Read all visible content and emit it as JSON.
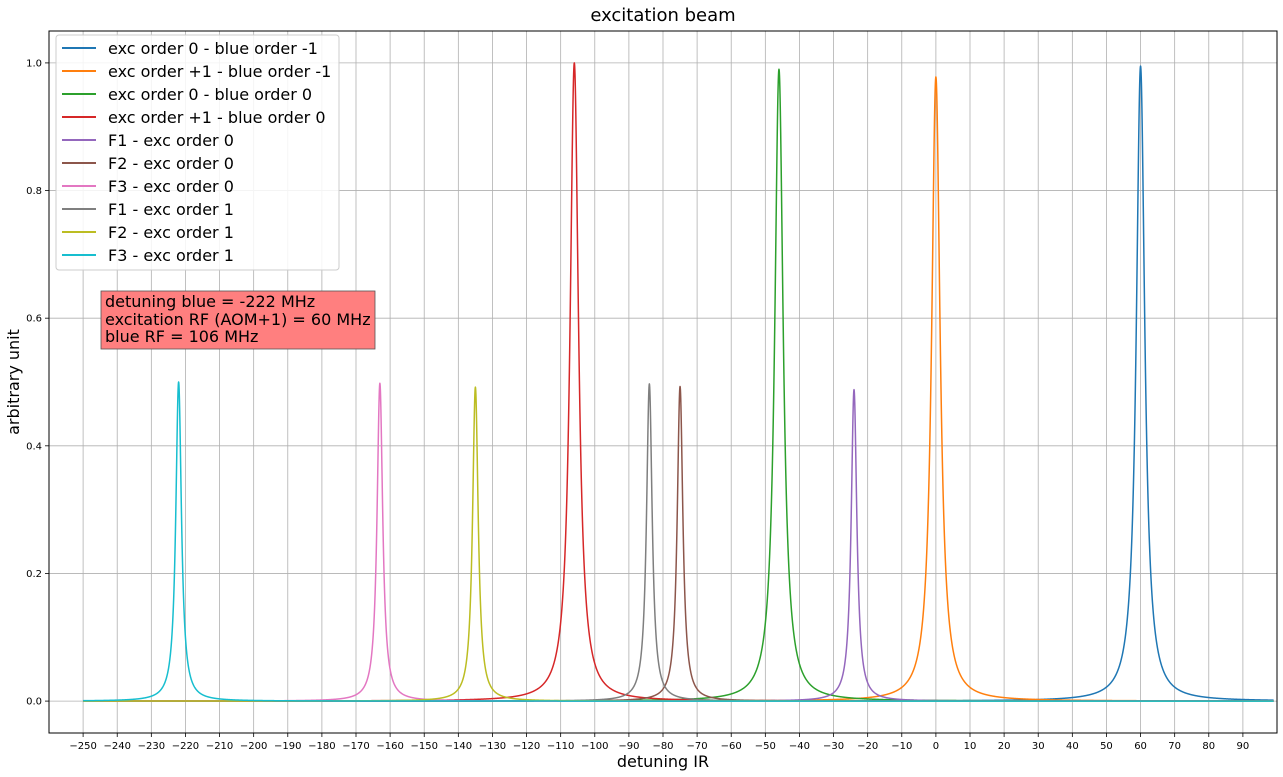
{
  "chart_data": {
    "type": "line",
    "title": "excitation beam",
    "xlabel": "detuning IR",
    "ylabel": "arbitrary unit",
    "xlim": [
      -260,
      100
    ],
    "ylim": [
      -0.05,
      1.05
    ],
    "x_range": [
      -250,
      99
    ],
    "xticks": [
      -250,
      -240,
      -230,
      -220,
      -210,
      -200,
      -190,
      -180,
      -170,
      -160,
      -150,
      -140,
      -130,
      -120,
      -110,
      -100,
      -90,
      -80,
      -70,
      -60,
      -50,
      -40,
      -30,
      -20,
      -10,
      0,
      10,
      20,
      30,
      40,
      50,
      60,
      70,
      80,
      90
    ],
    "xtick_labels": [
      "−250",
      "−240",
      "−230",
      "−220",
      "−210",
      "−200",
      "−190",
      "−180",
      "−170",
      "−160",
      "−150",
      "−140",
      "−130",
      "−120",
      "−110",
      "−100",
      "−90",
      "−80",
      "−70",
      "−60",
      "−50",
      "−40",
      "−30",
      "−20",
      "−10",
      "0",
      "10",
      "20",
      "30",
      "40",
      "50",
      "60",
      "70",
      "80",
      "90"
    ],
    "yticks": [
      0.0,
      0.2,
      0.4,
      0.6,
      0.8,
      1.0
    ],
    "ytick_labels": [
      "0.0",
      "0.2",
      "0.4",
      "0.6",
      "0.8",
      "1.0"
    ],
    "grid": true,
    "legend_position": "top-left",
    "series": [
      {
        "name": "exc order 0 - blue order -1",
        "color": "#1f77b4",
        "center": 60,
        "peak": 0.995,
        "width": 1.5
      },
      {
        "name": "exc order +1 - blue order -1",
        "color": "#ff7f0e",
        "center": 0,
        "peak": 0.978,
        "width": 1.5
      },
      {
        "name": "exc order 0 - blue order 0",
        "color": "#2ca02c",
        "center": -46,
        "peak": 0.99,
        "width": 1.5
      },
      {
        "name": "exc order +1 - blue order 0",
        "color": "#d62728",
        "center": -106,
        "peak": 1.0,
        "width": 1.5
      },
      {
        "name": "F1 - exc order 0",
        "color": "#9467bd",
        "center": -24,
        "peak": 0.488,
        "width": 1.0
      },
      {
        "name": "F2 - exc order 0",
        "color": "#8c564b",
        "center": -75,
        "peak": 0.493,
        "width": 1.0
      },
      {
        "name": "F3 - exc order 0",
        "color": "#e377c2",
        "center": -163,
        "peak": 0.498,
        "width": 1.0
      },
      {
        "name": "F1 - exc order 1",
        "color": "#7f7f7f",
        "center": -84,
        "peak": 0.497,
        "width": 1.0
      },
      {
        "name": "F2 - exc order 1",
        "color": "#bcbd22",
        "center": -135,
        "peak": 0.492,
        "width": 1.0
      },
      {
        "name": "F3 - exc order 1",
        "color": "#17becf",
        "center": -222,
        "peak": 0.5,
        "width": 1.0
      }
    ],
    "annotation": {
      "lines": [
        "detuning blue = -222 MHz",
        "excitation RF (AOM+1) = 60 MHz",
        "blue RF = 106 MHz"
      ],
      "background": "#ff7f7f",
      "position": "upper-left inside plot"
    }
  }
}
